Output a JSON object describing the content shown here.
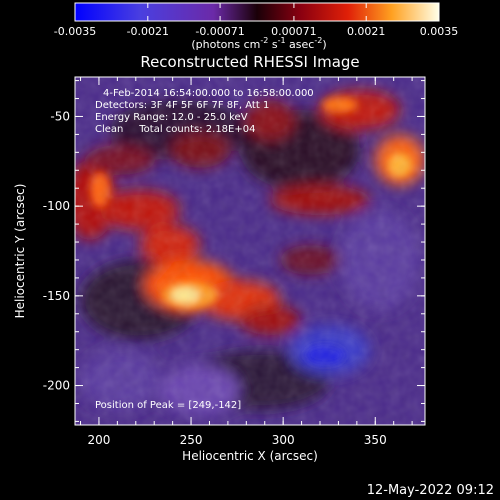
{
  "colorbar": {
    "ticks": [
      "-0.0035",
      "-0.0021",
      "-0.00071",
      "0.00071",
      "0.0021",
      "0.0035"
    ],
    "units_main": "(photons cm",
    "units_exp1": "-2",
    "units_mid": " s",
    "units_exp2": "-1",
    "units_tail": " asec",
    "units_exp3": "-2",
    "units_close": ")",
    "colors": [
      "#1a1aff",
      "#5a3fd0",
      "#7a2bb0",
      "#1a0010",
      "#6a0015",
      "#c81010",
      "#ff5a00",
      "#ffc040",
      "#ffffd8"
    ]
  },
  "plot": {
    "title": "Reconstructed RHESSI Image",
    "annotation_lines": [
      "4-Feb-2014 16:54:00.000 to 16:58:00.000",
      "Detectors: 3F 4F 5F 6F 7F 8F, Att 1",
      "Energy Range: 12.0 - 25.0 keV",
      "Clean     Total counts: 2.18E+04"
    ],
    "peak_label": "Position of Peak = [249,-142]",
    "xlabel": "Heliocentric X (arcsec)",
    "ylabel": "Heliocentric Y (arcsec)",
    "x_ticks": [
      "200",
      "250",
      "300",
      "350"
    ],
    "y_ticks": [
      "-50",
      "-100",
      "-150",
      "-200"
    ],
    "x_range": [
      187,
      377
    ],
    "y_range": [
      -222,
      -28
    ],
    "peak_xy": [
      249,
      -142
    ]
  },
  "footer": {
    "timestamp": "12-May-2022 09:12"
  }
}
